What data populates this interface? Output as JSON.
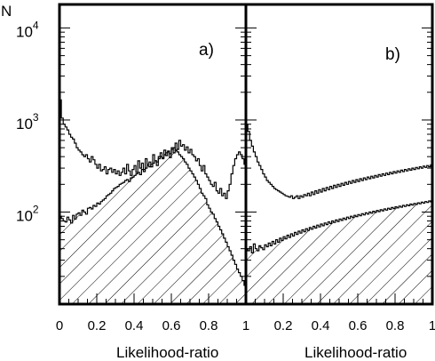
{
  "chart_data": [
    {
      "type": "histogram",
      "panel_label": "a)",
      "xlabel": "Likelihood-ratio",
      "ylabel": "N",
      "xlim": [
        0,
        1
      ],
      "ylim": [
        10,
        18000
      ],
      "y_scale": "log",
      "x_ticks": [
        0,
        0.2,
        0.4,
        0.6,
        0.8,
        1
      ],
      "x_tick_labels": [
        "0",
        "0.2",
        "0.4",
        "0.6",
        "0.8",
        "1"
      ],
      "y_ticks": [
        100,
        1000,
        10000
      ],
      "y_tick_labels": [
        {
          "base": "10",
          "exp": "2"
        },
        {
          "base": "10",
          "exp": "3"
        },
        {
          "base": "10",
          "exp": "4"
        }
      ],
      "bin_width": 0.01,
      "series": [
        {
          "style": "open",
          "values": [
            1650,
            1050,
            900,
            840,
            780,
            700,
            650,
            620,
            560,
            500,
            470,
            450,
            420,
            400,
            420,
            380,
            350,
            400,
            370,
            330,
            300,
            330,
            280,
            290,
            310,
            260,
            290,
            300,
            270,
            290,
            260,
            280,
            250,
            270,
            300,
            260,
            330,
            280,
            250,
            290,
            320,
            270,
            360,
            300,
            340,
            290,
            380,
            330,
            350,
            310,
            420,
            360,
            320,
            400,
            440,
            380,
            470,
            410,
            450,
            390,
            500,
            440,
            560,
            480,
            600,
            520,
            540,
            470,
            510,
            440,
            480,
            420,
            400,
            360,
            380,
            320,
            280,
            320,
            260,
            240,
            220,
            200,
            190,
            210,
            170,
            160,
            180,
            150,
            160,
            140,
            170,
            200,
            260,
            320,
            380,
            420,
            450,
            420,
            380,
            330
          ]
        },
        {
          "style": "hatched",
          "values": [
            90,
            85,
            80,
            78,
            88,
            82,
            76,
            92,
            84,
            95,
            98,
            92,
            105,
            100,
            95,
            110,
            112,
            108,
            118,
            115,
            125,
            122,
            130,
            135,
            140,
            150,
            155,
            160,
            170,
            180,
            185,
            190,
            200,
            205,
            210,
            220,
            225,
            215,
            235,
            240,
            250,
            260,
            270,
            255,
            290,
            275,
            300,
            320,
            310,
            330,
            340,
            360,
            350,
            380,
            400,
            390,
            420,
            440,
            460,
            430,
            480,
            500,
            470,
            450,
            420,
            400,
            380,
            350,
            330,
            300,
            280,
            260,
            240,
            220,
            200,
            180,
            160,
            150,
            140,
            120,
            110,
            100,
            95,
            85,
            78,
            70,
            64,
            58,
            52,
            47,
            42,
            38,
            34,
            30,
            27,
            24,
            22,
            20,
            18,
            16
          ]
        }
      ]
    },
    {
      "type": "histogram",
      "panel_label": "b)",
      "xlabel": "Likelihood-ratio",
      "xlim": [
        0,
        1
      ],
      "ylim": [
        10,
        18000
      ],
      "y_scale": "log",
      "x_ticks": [
        0,
        0.2,
        0.4,
        0.6,
        0.8,
        1
      ],
      "x_tick_labels": [
        "",
        "0.2",
        "0.4",
        "0.6",
        "0.8",
        "1"
      ],
      "bin_width": 0.01,
      "series": [
        {
          "style": "open",
          "values": [
            900,
            750,
            600,
            520,
            450,
            400,
            350,
            320,
            290,
            260,
            240,
            220,
            210,
            200,
            190,
            180,
            175,
            170,
            165,
            160,
            155,
            150,
            148,
            145,
            150,
            140,
            145,
            150,
            140,
            150,
            145,
            155,
            150,
            160,
            150,
            165,
            155,
            170,
            160,
            175,
            165,
            180,
            170,
            185,
            175,
            190,
            180,
            195,
            185,
            200,
            190,
            205,
            195,
            210,
            200,
            215,
            205,
            220,
            210,
            225,
            215,
            230,
            220,
            235,
            225,
            240,
            230,
            245,
            235,
            250,
            240,
            255,
            245,
            260,
            250,
            265,
            255,
            270,
            260,
            275,
            265,
            280,
            270,
            285,
            275,
            290,
            280,
            295,
            285,
            300,
            290,
            305,
            295,
            310,
            300,
            315,
            305,
            320,
            310,
            325
          ]
        },
        {
          "style": "hatched",
          "values": [
            40,
            38,
            42,
            36,
            45,
            40,
            38,
            43,
            41,
            39,
            44,
            42,
            46,
            43,
            48,
            45,
            50,
            47,
            52,
            49,
            54,
            51,
            56,
            53,
            58,
            55,
            60,
            57,
            62,
            59,
            64,
            61,
            66,
            63,
            68,
            65,
            70,
            67,
            72,
            69,
            74,
            71,
            76,
            73,
            78,
            75,
            80,
            77,
            82,
            79,
            84,
            81,
            86,
            83,
            88,
            85,
            90,
            87,
            92,
            89,
            94,
            91,
            96,
            93,
            98,
            95,
            100,
            97,
            102,
            99,
            104,
            101,
            106,
            103,
            108,
            105,
            110,
            107,
            112,
            109,
            114,
            111,
            116,
            113,
            118,
            115,
            120,
            117,
            122,
            119,
            124,
            121,
            126,
            123,
            128,
            125,
            130,
            127,
            132,
            129
          ]
        }
      ]
    }
  ]
}
